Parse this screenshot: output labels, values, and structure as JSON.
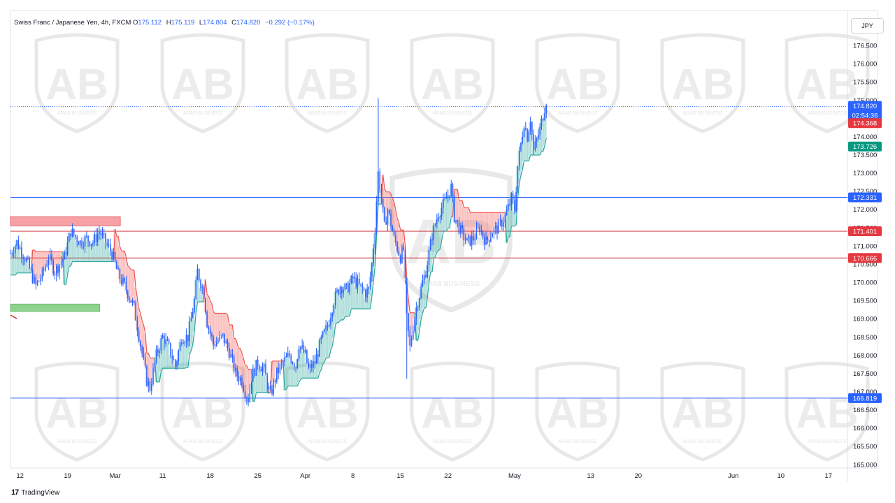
{
  "header": {
    "symbol": "Swiss Franc / Japanese Yen, 4h, FXCM",
    "o_label": "O",
    "o_value": "175.112",
    "h_label": "H",
    "h_value": "175.119",
    "l_label": "L",
    "l_value": "174.804",
    "c_label": "C",
    "c_value": "174.820",
    "change": "−0.292 (−0.17%)"
  },
  "currency_button": "JPY",
  "watermark_text": "ARAB BUSINESS",
  "footer": {
    "logo": "17",
    "brand": "TradingView"
  },
  "colors": {
    "candle": "#2962ff",
    "resistance_zone": "#f7a1a5",
    "support_zone": "#8fd18f",
    "blue_level": "#2962ff",
    "red_level": "#c92a32",
    "ribbon_up": "#26a69a",
    "ribbon_down": "#ef5350",
    "dotted_line": "#2962ff"
  },
  "chart_data": {
    "type": "candlestick",
    "symbol": "CHFJPY",
    "timeframe": "4h",
    "y_axis": {
      "min": 164.9,
      "max": 176.75,
      "ticks": [
        "176.500",
        "176.000",
        "175.500",
        "175.000",
        "174.500",
        "174.000",
        "173.500",
        "173.000",
        "172.500",
        "172.000",
        "171.500",
        "171.000",
        "170.500",
        "170.000",
        "169.500",
        "169.000",
        "168.500",
        "168.000",
        "167.500",
        "167.000",
        "166.500",
        "166.000",
        "165.500",
        "165.000"
      ]
    },
    "x_axis": {
      "labels": [
        {
          "text": "12",
          "index": 6
        },
        {
          "text": "19",
          "index": 36
        },
        {
          "text": "Mar",
          "index": 66
        },
        {
          "text": "11",
          "index": 96
        },
        {
          "text": "18",
          "index": 126
        },
        {
          "text": "25",
          "index": 156
        },
        {
          "text": "Apr",
          "index": 186
        },
        {
          "text": "8",
          "index": 216
        },
        {
          "text": "15",
          "index": 246
        },
        {
          "text": "22",
          "index": 276
        },
        {
          "text": "May",
          "index": 318
        },
        {
          "text": "13",
          "index": 366
        },
        {
          "text": "20",
          "index": 396
        },
        {
          "text": "Jun",
          "index": 456
        },
        {
          "text": "10",
          "index": 486
        },
        {
          "text": "17",
          "index": 516
        }
      ]
    },
    "path_points": [
      [
        0,
        170.8
      ],
      [
        4,
        171.1
      ],
      [
        10,
        170.6
      ],
      [
        16,
        169.9
      ],
      [
        20,
        170.2
      ],
      [
        24,
        170.7
      ],
      [
        28,
        170.3
      ],
      [
        34,
        170.7
      ],
      [
        38,
        171.4
      ],
      [
        44,
        171.1
      ],
      [
        48,
        171.2
      ],
      [
        52,
        171.1
      ],
      [
        56,
        171.4
      ],
      [
        60,
        171.1
      ],
      [
        64,
        170.8
      ],
      [
        68,
        170.2
      ],
      [
        72,
        169.9
      ],
      [
        78,
        169.3
      ],
      [
        82,
        168.3
      ],
      [
        86,
        167.3
      ],
      [
        88,
        167.1
      ],
      [
        92,
        168.0
      ],
      [
        96,
        168.5
      ],
      [
        100,
        168.2
      ],
      [
        104,
        167.7
      ],
      [
        108,
        168.5
      ],
      [
        112,
        168.5
      ],
      [
        116,
        169.5
      ],
      [
        118,
        170.3
      ],
      [
        122,
        169.7
      ],
      [
        124,
        168.9
      ],
      [
        128,
        168.3
      ],
      [
        134,
        168.5
      ],
      [
        138,
        168.1
      ],
      [
        142,
        167.5
      ],
      [
        146,
        167.3
      ],
      [
        148,
        167.0
      ],
      [
        150,
        166.8
      ],
      [
        152,
        167.4
      ],
      [
        156,
        167.8
      ],
      [
        160,
        167.6
      ],
      [
        162,
        167.2
      ],
      [
        164,
        166.9
      ],
      [
        168,
        167.5
      ],
      [
        172,
        167.8
      ],
      [
        176,
        168.0
      ],
      [
        180,
        167.7
      ],
      [
        182,
        168.3
      ],
      [
        186,
        168.0
      ],
      [
        188,
        167.6
      ],
      [
        192,
        167.8
      ],
      [
        196,
        168.4
      ],
      [
        200,
        168.8
      ],
      [
        204,
        169.5
      ],
      [
        208,
        169.9
      ],
      [
        212,
        169.8
      ],
      [
        216,
        170.1
      ],
      [
        220,
        169.9
      ],
      [
        224,
        169.7
      ],
      [
        226,
        169.8
      ],
      [
        228,
        170.5
      ],
      [
        230,
        171.5
      ],
      [
        232,
        173.0
      ],
      [
        234,
        172.3
      ],
      [
        236,
        171.5
      ],
      [
        238,
        172.0
      ],
      [
        242,
        171.2
      ],
      [
        246,
        170.7
      ],
      [
        248,
        170.9
      ],
      [
        250,
        169.0
      ],
      [
        252,
        168.2
      ],
      [
        254,
        168.8
      ],
      [
        256,
        169.3
      ],
      [
        260,
        170.0
      ],
      [
        262,
        170.3
      ],
      [
        264,
        170.8
      ],
      [
        266,
        171.3
      ],
      [
        270,
        171.9
      ],
      [
        274,
        172.2
      ],
      [
        278,
        172.6
      ],
      [
        280,
        171.8
      ],
      [
        284,
        171.4
      ],
      [
        288,
        171.1
      ],
      [
        292,
        171.2
      ],
      [
        296,
        171.5
      ],
      [
        300,
        171.1
      ],
      [
        304,
        171.4
      ],
      [
        308,
        171.5
      ],
      [
        312,
        171.8
      ],
      [
        316,
        172.3
      ],
      [
        318,
        172.0
      ],
      [
        320,
        173.2
      ],
      [
        322,
        173.8
      ],
      [
        324,
        174.4
      ],
      [
        326,
        174.0
      ],
      [
        328,
        174.5
      ],
      [
        330,
        173.6
      ],
      [
        334,
        174.2
      ],
      [
        336,
        174.6
      ],
      [
        338,
        175.0
      ]
    ],
    "candle_count": 339,
    "x_max_index": 528,
    "current_price": "174.820",
    "countdown": "02:54:36",
    "price_badges": [
      {
        "value": "174.820",
        "color": "#2962ff"
      },
      {
        "value": "174.368",
        "color": "#e53840"
      },
      {
        "value": "173.726",
        "color": "#089981"
      },
      {
        "value": "172.331",
        "color": "#2962ff"
      },
      {
        "value": "171.401",
        "color": "#e53840"
      },
      {
        "value": "170.666",
        "color": "#e53840"
      },
      {
        "value": "166.819",
        "color": "#2962ff"
      }
    ],
    "horizontal_levels": [
      {
        "price": 172.331,
        "color": "#2962ff"
      },
      {
        "price": 171.401,
        "color": "#c92a32"
      },
      {
        "price": 170.666,
        "color": "#c92a32"
      },
      {
        "price": 166.819,
        "color": "#2962ff"
      }
    ],
    "zones": [
      {
        "label": "resistance",
        "from_index": 0,
        "to_index": 34,
        "top": 171.8,
        "bottom": 171.55
      },
      {
        "label": "support",
        "from_index": 0,
        "to_index": 21,
        "top": 169.4,
        "bottom": 169.2
      }
    ]
  }
}
